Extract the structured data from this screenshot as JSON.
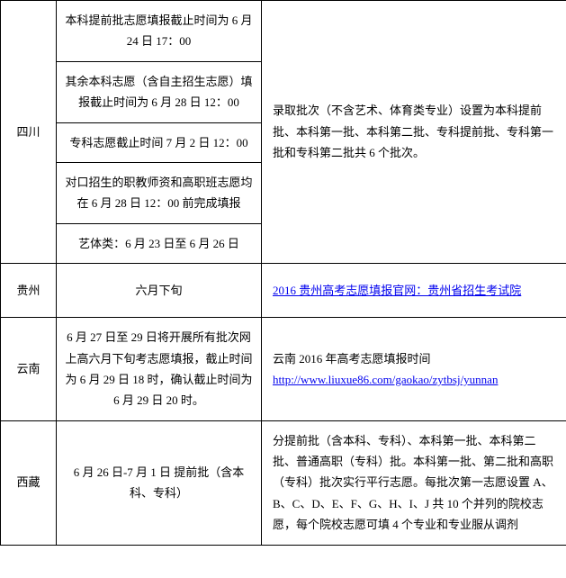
{
  "rows": [
    {
      "province": "四川",
      "times": [
        "本科提前批志愿填报截止时间为 6 月 24 日 17：00",
        "其余本科志愿（含自主招生志愿）填报截止时间为 6 月 28 日 12：00",
        "专科志愿截止时间 7 月 2 日 12：00",
        "对口招生的职教师资和高职班志愿均在 6 月 28 日 12：00 前完成填报",
        "艺体类：6 月 23 日至 6 月 26 日"
      ],
      "desc": "录取批次（不含艺术、体育类专业）设置为本科提前批、本科第一批、本科第二批、专科提前批、专科第一批和专科第二批共 6 个批次。"
    },
    {
      "province": "贵州",
      "time": "六月下旬",
      "link_text": "2016 贵州高考志愿填报官网：贵州省招生考试院"
    },
    {
      "province": "云南",
      "time": "6 月 27 日至 29 日将开展所有批次网上高六月下旬考志愿填报，截止时间为 6 月 29 日 18 时，确认截止时间为 6 月 29 日 20 时。",
      "desc_prefix": "云南 2016 年高考志愿填报时间",
      "desc_link": "http://www.liuxue86.com/gaokao/zytbsj/yunnan"
    },
    {
      "province": "西藏",
      "time": "6 月 26 日-7 月 1 日  提前批（含本科、专科）",
      "desc": "分提前批（含本科、专科）、本科第一批、本科第二批、普通高职（专科）批。本科第一批、第二批和高职（专科）批次实行平行志愿。每批次第一志愿设置 A、B、C、D、E、F、G、H、I、J 共 10 个并列的院校志愿，每个院校志愿可填 4 个专业和专业服从调剂"
    }
  ]
}
